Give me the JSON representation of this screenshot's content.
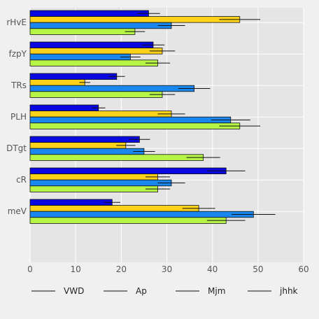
{
  "chart_data": {
    "type": "bar",
    "orientation": "horizontal",
    "categories": [
      "rHvE",
      "fzpY",
      "TRs",
      "PLH",
      "DTgt",
      "cR",
      "meV"
    ],
    "series": [
      {
        "name": "VWD",
        "color": "#0a08e0",
        "values": [
          26,
          27,
          19,
          15,
          24,
          43,
          18
        ],
        "errors": [
          2.5,
          2.5,
          1.8,
          1.5,
          2.3,
          4.2,
          1.8
        ]
      },
      {
        "name": "Ap",
        "color": "#ffd21a",
        "values": [
          46,
          29,
          12,
          31,
          21,
          28,
          37
        ],
        "errors": [
          4.5,
          2.8,
          1.2,
          3.0,
          2.1,
          2.7,
          3.6
        ]
      },
      {
        "name": "Mjm",
        "color": "#1a87ee",
        "values": [
          31,
          22,
          36,
          44,
          25,
          31,
          49
        ],
        "errors": [
          3.0,
          2.2,
          3.5,
          4.3,
          2.4,
          3.0,
          4.8
        ]
      },
      {
        "name": "jhhk",
        "color": "#b6f545",
        "values": [
          23,
          28,
          29,
          46,
          38,
          28,
          43
        ],
        "errors": [
          2.2,
          2.7,
          2.8,
          4.5,
          3.7,
          2.7,
          4.2
        ]
      }
    ],
    "xlim": [
      0,
      60
    ],
    "xticks": [
      0,
      10,
      20,
      30,
      40,
      50,
      60
    ],
    "grid": true,
    "legend_position": "bottom",
    "error_bars": true,
    "title": "",
    "xlabel": "",
    "ylabel": ""
  }
}
